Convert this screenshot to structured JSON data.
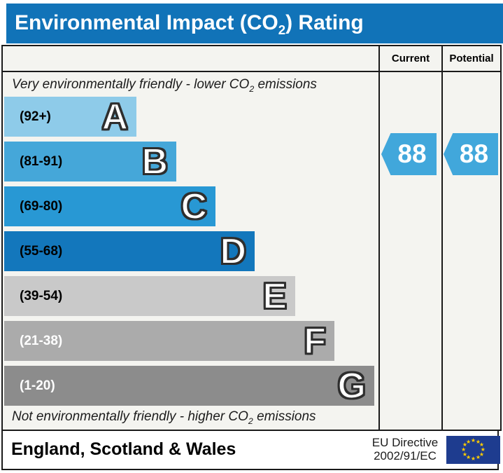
{
  "title": {
    "prefix": "Environmental Impact (CO",
    "sub": "2",
    "suffix": ") Rating"
  },
  "colors": {
    "title_bar": "#1173b8",
    "table_background": "#f4f4f0",
    "border": "#1a1a1a"
  },
  "table": {
    "header": {
      "current": "Current",
      "potential": "Potential"
    },
    "top_note": {
      "prefix": "Very environmentally friendly - lower CO",
      "sub": "2",
      "suffix": " emissions"
    },
    "bottom_note": {
      "prefix": "Not environmentally friendly - higher CO",
      "sub": "2",
      "suffix": " emissions"
    }
  },
  "chart_data": {
    "type": "bar",
    "title": "Environmental Impact (CO2) Rating",
    "columns": [
      "Current",
      "Potential"
    ],
    "bands": [
      {
        "letter": "A",
        "range_label": "(92+)",
        "min": 92,
        "max": 100,
        "color": "#8ecbe9",
        "label_color": "#000000",
        "bar_length": 189
      },
      {
        "letter": "B",
        "range_label": "(81-91)",
        "min": 81,
        "max": 91,
        "color": "#45a7d9",
        "label_color": "#000000",
        "bar_length": 246
      },
      {
        "letter": "C",
        "range_label": "(69-80)",
        "min": 69,
        "max": 80,
        "color": "#2898d4",
        "label_color": "#000000",
        "bar_length": 302
      },
      {
        "letter": "D",
        "range_label": "(55-68)",
        "min": 55,
        "max": 68,
        "color": "#1377bc",
        "label_color": "#000000",
        "bar_length": 358
      },
      {
        "letter": "E",
        "range_label": "(39-54)",
        "min": 39,
        "max": 54,
        "color": "#c9c9c9",
        "label_color": "#000000",
        "bar_length": 416
      },
      {
        "letter": "F",
        "range_label": "(21-38)",
        "min": 21,
        "max": 38,
        "color": "#ababab",
        "label_color": "#ffffff",
        "bar_length": 472
      },
      {
        "letter": "G",
        "range_label": "(1-20)",
        "min": 1,
        "max": 20,
        "color": "#8c8c8c",
        "label_color": "#ffffff",
        "bar_length": 529
      }
    ],
    "ratings": {
      "current": 88,
      "potential": 88,
      "band": "B",
      "arrow_color": "#41a7db"
    }
  },
  "footer": {
    "region": "England, Scotland & Wales",
    "directive": {
      "line1": "EU Directive",
      "line2": "2002/91/EC"
    },
    "eu_flag": {
      "background": "#1e3c8f",
      "star_color": "#ffce00",
      "star_count": 12
    }
  }
}
